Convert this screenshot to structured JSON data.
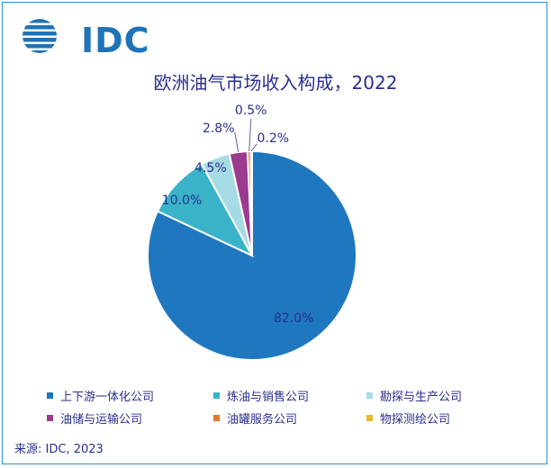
{
  "brand": {
    "logo_text": "IDC",
    "logo_color": "#1f73b7"
  },
  "chart_data": {
    "type": "pie",
    "title": "欧洲油气市场收入构成，2022",
    "categories": [
      "上下游一体化公司",
      "炼油与销售公司",
      "勘探与生产公司",
      "油储与运输公司",
      "油罐服务公司",
      "物探测绘公司"
    ],
    "values": [
      82.0,
      10.0,
      4.5,
      2.8,
      0.5,
      0.2
    ],
    "labels": [
      "82.0%",
      "10.0%",
      "4.5%",
      "2.8%",
      "0.5%",
      "0.2%"
    ],
    "colors": [
      "#1f78bf",
      "#3ab3c9",
      "#a6dbe6",
      "#9b3a8e",
      "#e07b26",
      "#e8b82c"
    ],
    "legend_position": "bottom"
  },
  "source": "来源: IDC, 2023"
}
